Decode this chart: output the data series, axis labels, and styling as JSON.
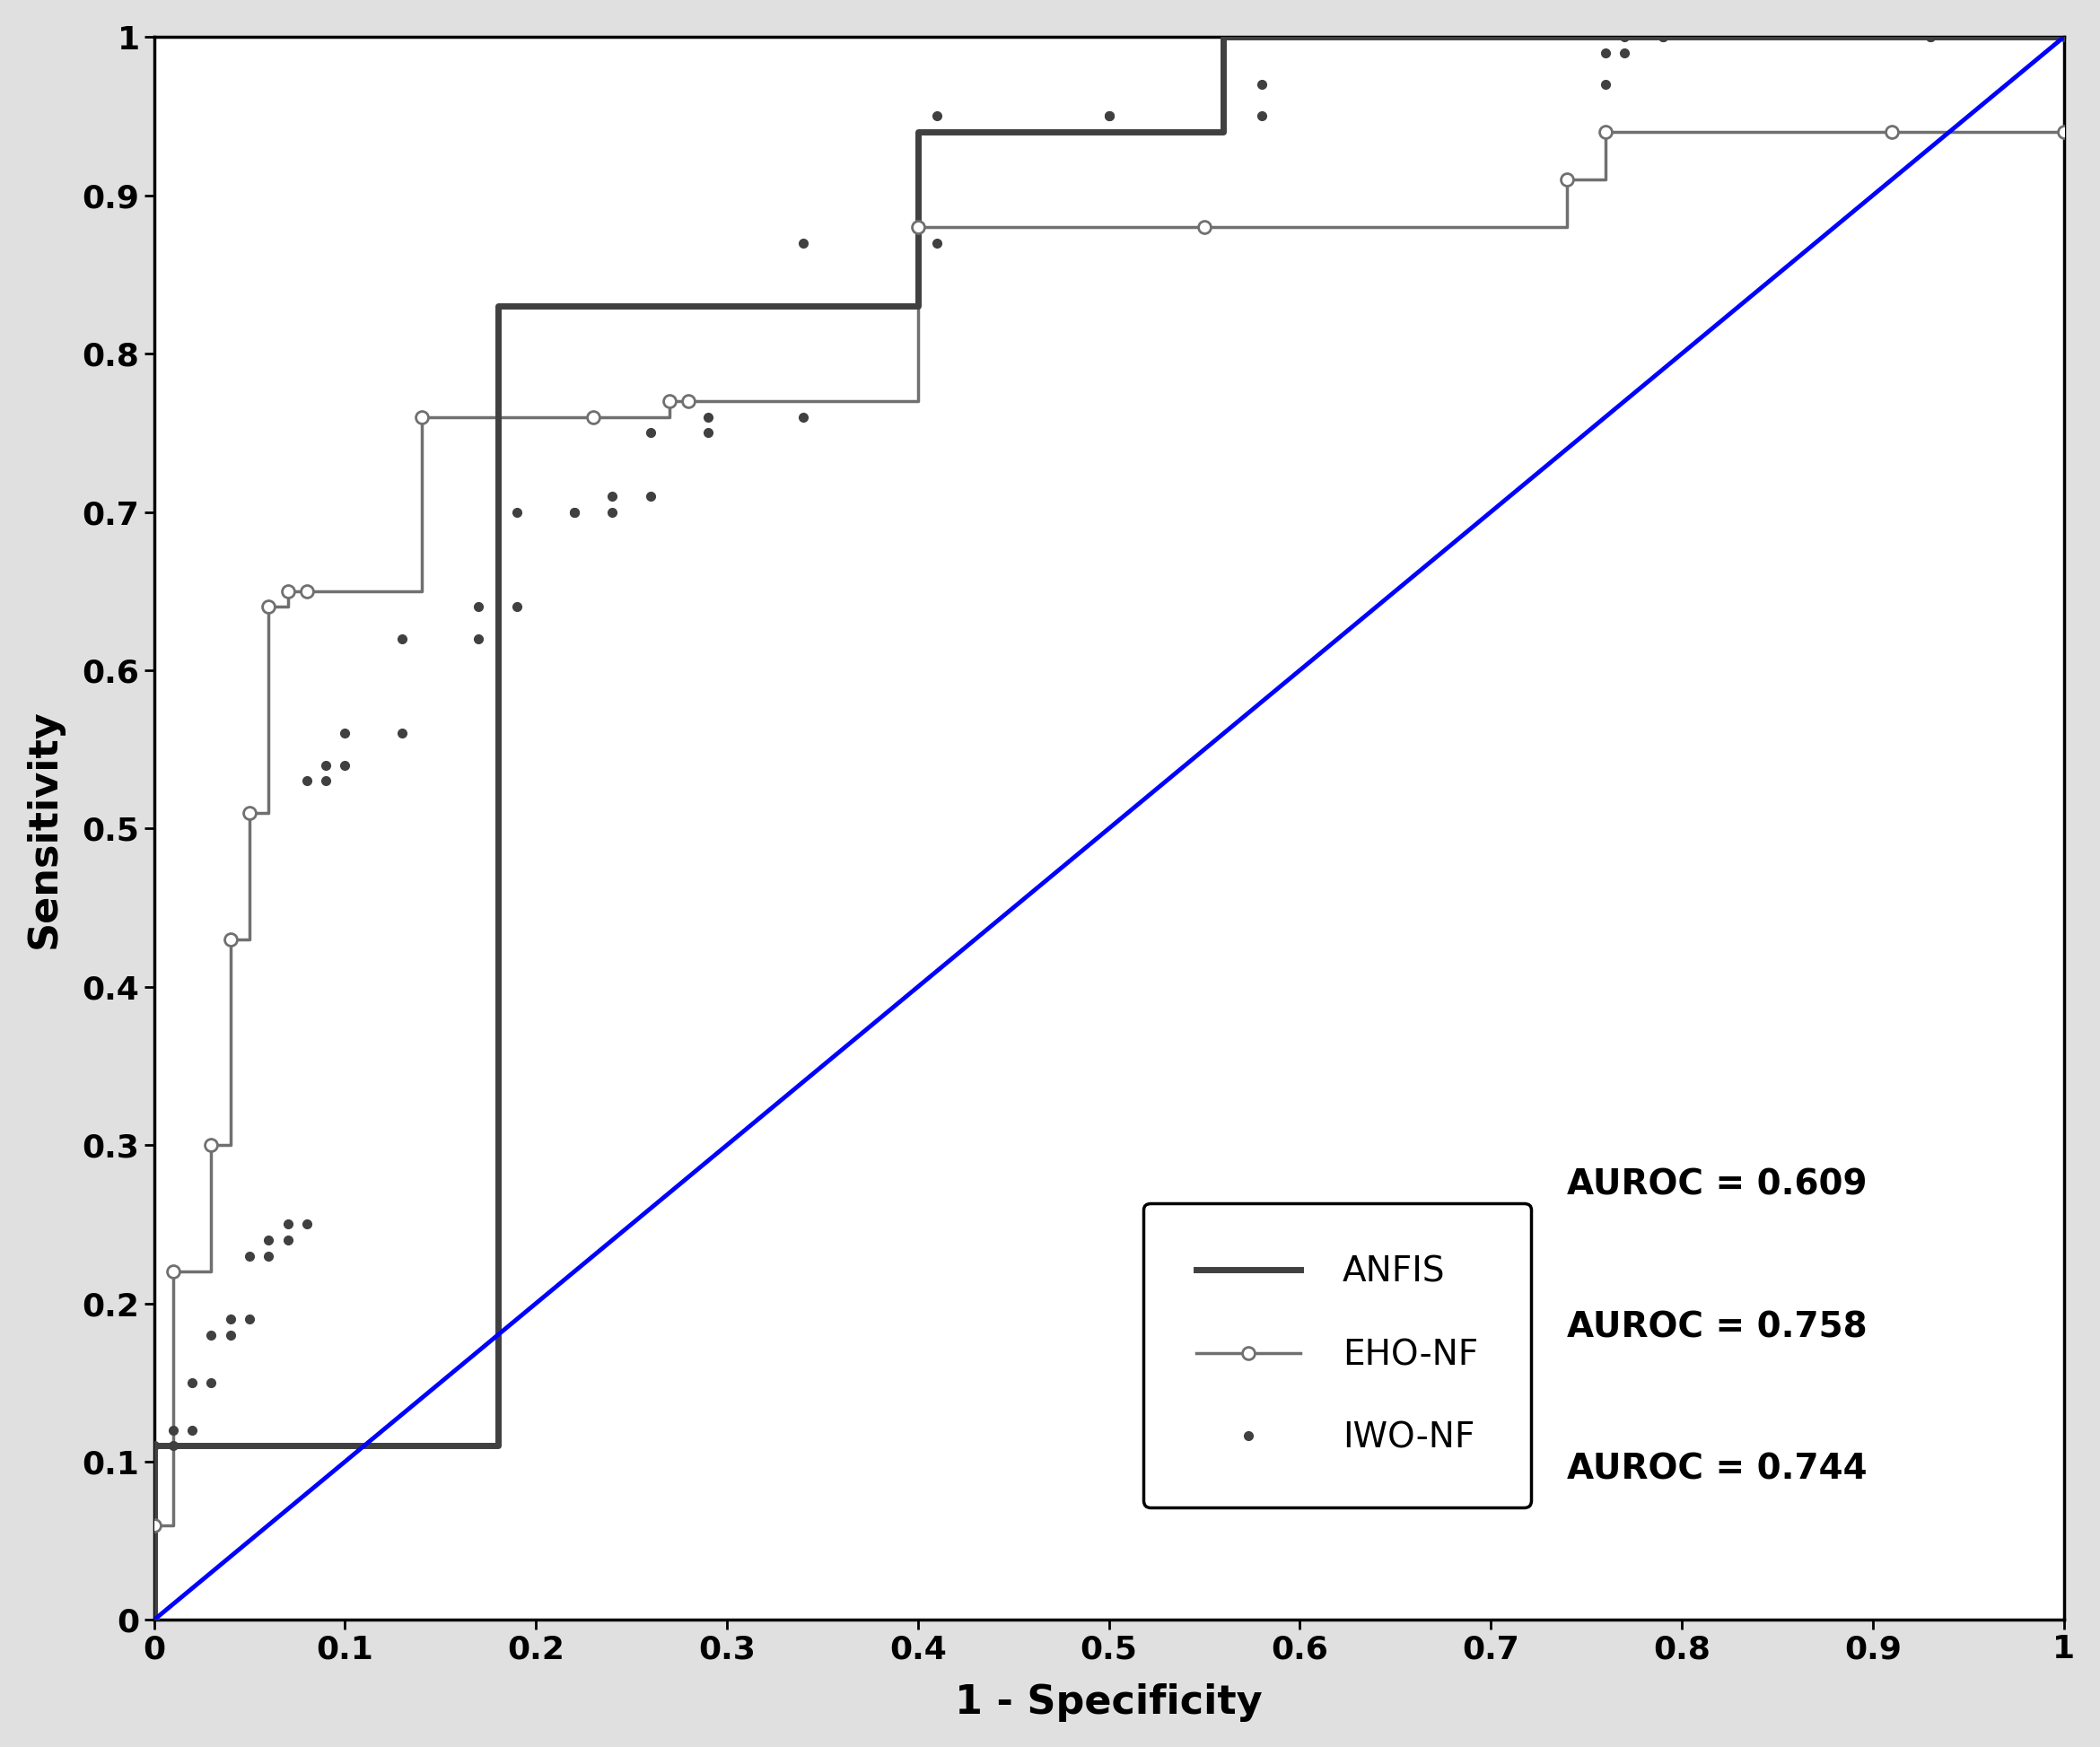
{
  "title": "",
  "xlabel": "1 - Specificity",
  "ylabel": "Sensitivity",
  "xlim": [
    0,
    1
  ],
  "ylim": [
    0,
    1
  ],
  "xticks": [
    0,
    0.1,
    0.2,
    0.3,
    0.4,
    0.5,
    0.6,
    0.7,
    0.8,
    0.9,
    1.0
  ],
  "yticks": [
    0,
    0.1,
    0.2,
    0.3,
    0.4,
    0.5,
    0.6,
    0.7,
    0.8,
    0.9,
    1.0
  ],
  "diagonal_color": "#0000FF",
  "background_color": "#ffffff",
  "fig_background": "#e0e0e0",
  "anfis_color": "#404040",
  "eho_color": "#707070",
  "iwo_color": "#404040",
  "anfis_fpr": [
    0.0,
    0.0,
    0.18,
    0.18,
    0.22,
    0.22,
    0.4,
    0.4,
    0.56,
    0.56,
    0.92,
    0.92,
    1.0
  ],
  "anfis_tpr": [
    0.0,
    0.11,
    0.11,
    0.83,
    0.83,
    0.83,
    0.83,
    0.94,
    0.94,
    1.0,
    1.0,
    1.0,
    1.0
  ],
  "eho_fpr": [
    0.0,
    0.0,
    0.01,
    0.01,
    0.03,
    0.03,
    0.04,
    0.04,
    0.05,
    0.05,
    0.06,
    0.06,
    0.07,
    0.07,
    0.08,
    0.08,
    0.14,
    0.14,
    0.23,
    0.23,
    0.27,
    0.27,
    0.28,
    0.28,
    0.4,
    0.4,
    0.55,
    0.55,
    0.74,
    0.74,
    0.76,
    0.76,
    0.91,
    0.91,
    1.0
  ],
  "eho_tpr": [
    0.0,
    0.06,
    0.06,
    0.22,
    0.22,
    0.3,
    0.3,
    0.43,
    0.43,
    0.51,
    0.51,
    0.64,
    0.64,
    0.65,
    0.65,
    0.65,
    0.65,
    0.76,
    0.76,
    0.76,
    0.76,
    0.77,
    0.77,
    0.77,
    0.77,
    0.88,
    0.88,
    0.88,
    0.88,
    0.91,
    0.91,
    0.94,
    0.94,
    0.94,
    0.94
  ],
  "eho_markers_fpr": [
    0.0,
    0.01,
    0.03,
    0.04,
    0.05,
    0.06,
    0.07,
    0.08,
    0.14,
    0.23,
    0.27,
    0.28,
    0.4,
    0.55,
    0.74,
    0.76,
    0.91,
    1.0
  ],
  "eho_markers_tpr": [
    0.06,
    0.22,
    0.3,
    0.43,
    0.51,
    0.64,
    0.65,
    0.65,
    0.76,
    0.76,
    0.77,
    0.77,
    0.88,
    0.88,
    0.91,
    0.94,
    0.94,
    0.94
  ],
  "iwo_fpr": [
    0.0,
    0.0,
    0.01,
    0.01,
    0.02,
    0.02,
    0.03,
    0.03,
    0.04,
    0.04,
    0.05,
    0.05,
    0.06,
    0.06,
    0.07,
    0.07,
    0.08,
    0.08,
    0.09,
    0.09,
    0.1,
    0.1,
    0.13,
    0.13,
    0.17,
    0.17,
    0.19,
    0.19,
    0.22,
    0.22,
    0.24,
    0.24,
    0.26,
    0.26,
    0.29,
    0.29,
    0.34,
    0.34,
    0.41,
    0.41,
    0.5,
    0.5,
    0.58,
    0.58,
    0.76,
    0.76,
    0.77,
    0.77,
    0.79,
    0.79,
    0.93,
    0.93,
    1.0
  ],
  "iwo_tpr": [
    0.0,
    0.11,
    0.11,
    0.12,
    0.12,
    0.15,
    0.15,
    0.18,
    0.18,
    0.19,
    0.19,
    0.23,
    0.23,
    0.24,
    0.24,
    0.25,
    0.25,
    0.53,
    0.53,
    0.54,
    0.54,
    0.56,
    0.56,
    0.62,
    0.62,
    0.64,
    0.64,
    0.7,
    0.7,
    0.7,
    0.7,
    0.71,
    0.71,
    0.75,
    0.75,
    0.76,
    0.76,
    0.87,
    0.87,
    0.95,
    0.95,
    0.95,
    0.95,
    0.97,
    0.97,
    0.99,
    0.99,
    1.0,
    1.0,
    1.0,
    1.0,
    1.0,
    1.0
  ],
  "legend_fontsize": 28,
  "auroc_fontsize": 28,
  "axis_label_fontsize": 32,
  "tick_fontsize": 26
}
